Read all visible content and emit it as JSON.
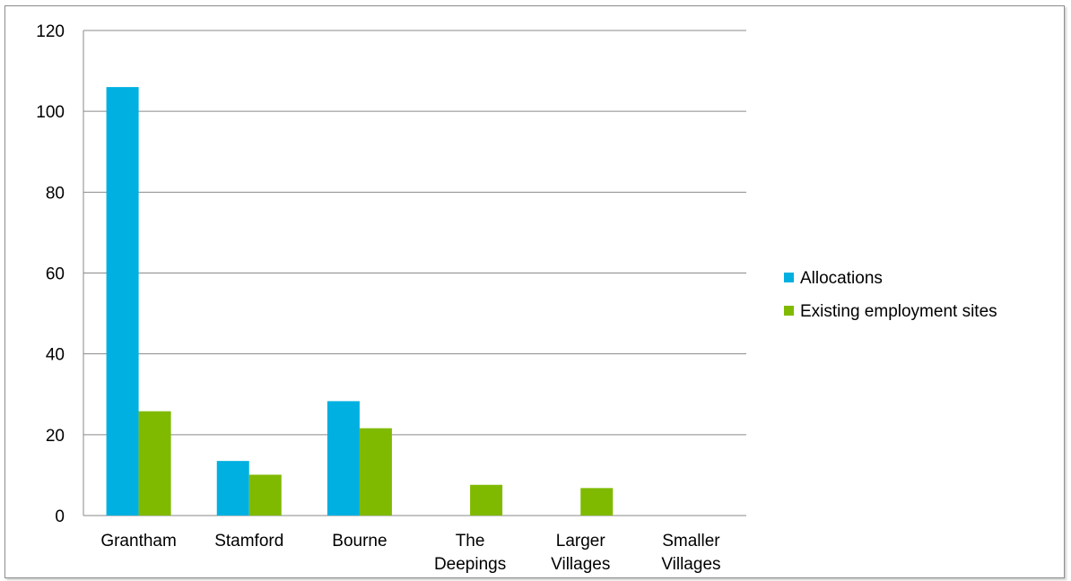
{
  "chart_data": {
    "type": "bar",
    "title": "",
    "xlabel": "",
    "ylabel": "",
    "ylim": [
      0,
      120
    ],
    "yticks": [
      0,
      20,
      40,
      60,
      80,
      100,
      120
    ],
    "grid": true,
    "legend_position": "right",
    "categories": [
      [
        "Grantham"
      ],
      [
        "Stamford"
      ],
      [
        "Bourne"
      ],
      [
        "The",
        "Deepings"
      ],
      [
        "Larger",
        "Villages"
      ],
      [
        "Smaller",
        "Villages"
      ]
    ],
    "series": [
      {
        "name": "Allocations",
        "color": "#00b0e0",
        "values": [
          106,
          13.5,
          28.3,
          0,
          0,
          0
        ]
      },
      {
        "name": "Existing employment sites",
        "color": "#7fba00",
        "values": [
          25.8,
          10.1,
          21.6,
          7.6,
          6.8,
          0
        ]
      }
    ]
  }
}
